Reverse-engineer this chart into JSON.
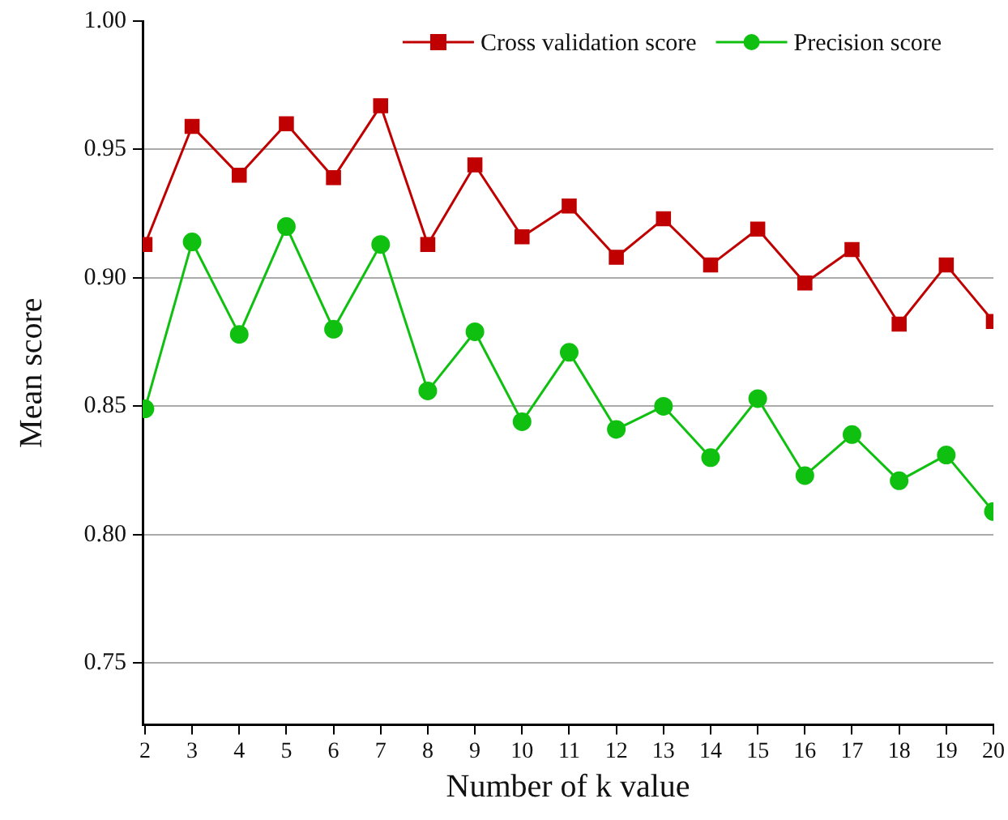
{
  "chart_data": {
    "type": "line",
    "xlabel": "Number of k value",
    "ylabel": "Mean score",
    "x": [
      2,
      3,
      4,
      5,
      6,
      7,
      8,
      9,
      10,
      11,
      12,
      13,
      14,
      15,
      16,
      17,
      18,
      19,
      20
    ],
    "series": [
      {
        "name": "Cross validation score",
        "color": "#c00000",
        "marker": "square",
        "values": [
          0.913,
          0.959,
          0.94,
          0.96,
          0.939,
          0.967,
          0.913,
          0.944,
          0.916,
          0.928,
          0.908,
          0.923,
          0.905,
          0.919,
          0.898,
          0.911,
          0.882,
          0.905,
          0.883
        ]
      },
      {
        "name": "Precision score",
        "color": "#10c010",
        "marker": "circle",
        "values": [
          0.849,
          0.914,
          0.878,
          0.92,
          0.88,
          0.913,
          0.856,
          0.879,
          0.844,
          0.871,
          0.841,
          0.85,
          0.83,
          0.853,
          0.823,
          0.839,
          0.821,
          0.831,
          0.809
        ]
      }
    ],
    "xlim": [
      1.95,
      20
    ],
    "xticks": [
      2,
      3,
      4,
      5,
      6,
      7,
      8,
      9,
      10,
      11,
      12,
      13,
      14,
      15,
      16,
      17,
      18,
      19,
      20
    ],
    "ylim": [
      0.726,
      1.0
    ],
    "yticks": [
      {
        "value": 0.75,
        "label": "0.75"
      },
      {
        "value": 0.8,
        "label": "0.80"
      },
      {
        "value": 0.85,
        "label": "0.85"
      },
      {
        "value": 0.9,
        "label": "0.90"
      },
      {
        "value": 0.95,
        "label": "0.95"
      },
      {
        "value": 1,
        "label": "1.00"
      }
    ],
    "grid": "y",
    "legend": "top right",
    "line_style": "solid"
  }
}
